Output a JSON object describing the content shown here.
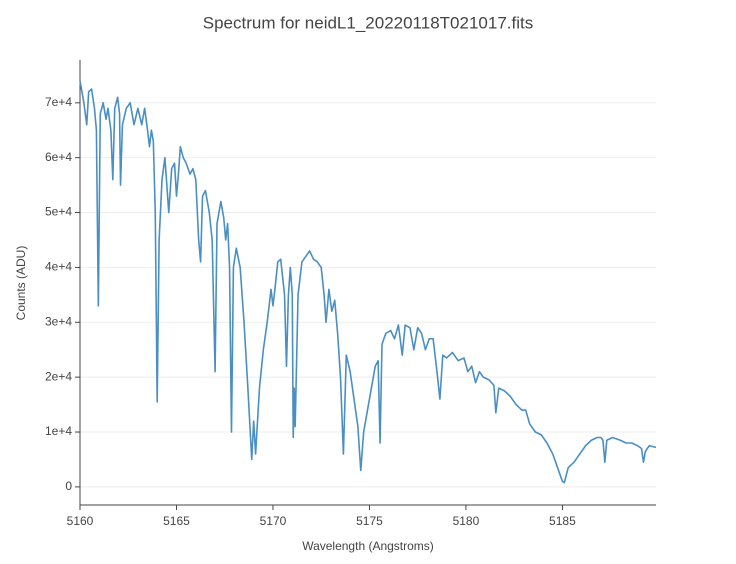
{
  "chart_data": {
    "type": "line",
    "title": "Spectrum for neidL1_20220118T021017.fits",
    "x_label": "Wavelength (Angstroms)",
    "y_label": "Counts (ADU)",
    "xlim": [
      5160,
      5189.85
    ],
    "ylim": [
      -3300,
      77800
    ],
    "xticks": [
      5160,
      5165,
      5170,
      5175,
      5180,
      5185
    ],
    "yticks": [
      0,
      {
        "value": 10000,
        "label": "1e+4"
      },
      {
        "value": 20000,
        "label": "2e+4"
      },
      {
        "value": 30000,
        "label": "3e+4"
      },
      {
        "value": 40000,
        "label": "4e+4"
      },
      {
        "value": 50000,
        "label": "5e+4"
      },
      {
        "value": 60000,
        "label": "6e+4"
      },
      {
        "value": 70000,
        "label": "7e+4"
      }
    ],
    "grid": true,
    "series": [
      {
        "name": "Counts (ADU)",
        "color": "#4a8fc4",
        "x": [
          5160.0,
          5160.1,
          5160.2,
          5160.35,
          5160.45,
          5160.6,
          5160.75,
          5160.85,
          5160.95,
          5161.05,
          5161.2,
          5161.35,
          5161.45,
          5161.6,
          5161.7,
          5161.8,
          5161.95,
          5162.05,
          5162.1,
          5162.2,
          5162.4,
          5162.6,
          5162.8,
          5163.0,
          5163.2,
          5163.35,
          5163.5,
          5163.6,
          5163.7,
          5163.8,
          5163.9,
          5164.0,
          5164.1,
          5164.25,
          5164.4,
          5164.5,
          5164.6,
          5164.75,
          5164.9,
          5165.0,
          5165.1,
          5165.2,
          5165.35,
          5165.5,
          5165.7,
          5165.85,
          5166.0,
          5166.15,
          5166.25,
          5166.35,
          5166.5,
          5166.7,
          5166.85,
          5167.0,
          5167.1,
          5167.3,
          5167.45,
          5167.55,
          5167.65,
          5167.75,
          5167.85,
          5167.95,
          5168.1,
          5168.3,
          5168.5,
          5168.7,
          5168.9,
          5169.0,
          5169.1,
          5169.3,
          5169.5,
          5169.7,
          5169.9,
          5170.0,
          5170.1,
          5170.25,
          5170.4,
          5170.6,
          5170.7,
          5170.8,
          5170.9,
          5171.0,
          5171.05,
          5171.1,
          5171.15,
          5171.3,
          5171.5,
          5171.7,
          5171.9,
          5172.1,
          5172.3,
          5172.5,
          5172.65,
          5172.75,
          5172.9,
          5173.05,
          5173.2,
          5173.35,
          5173.5,
          5173.65,
          5173.8,
          5174.0,
          5174.2,
          5174.4,
          5174.55,
          5174.7,
          5174.9,
          5175.1,
          5175.3,
          5175.45,
          5175.55,
          5175.65,
          5175.85,
          5176.1,
          5176.3,
          5176.5,
          5176.7,
          5176.85,
          5177.1,
          5177.3,
          5177.5,
          5177.7,
          5177.9,
          5178.1,
          5178.3,
          5178.5,
          5178.65,
          5178.8,
          5179.0,
          5179.3,
          5179.6,
          5179.9,
          5180.1,
          5180.3,
          5180.5,
          5180.7,
          5180.9,
          5181.2,
          5181.45,
          5181.55,
          5181.7,
          5182.0,
          5182.3,
          5182.6,
          5182.9,
          5183.1,
          5183.3,
          5183.6,
          5183.9,
          5184.2,
          5184.5,
          5184.8,
          5185.0,
          5185.1,
          5185.3,
          5185.6,
          5185.9,
          5186.2,
          5186.5,
          5186.8,
          5187.0,
          5187.1,
          5187.2,
          5187.3,
          5187.6,
          5188.0,
          5188.3,
          5188.6,
          5188.9,
          5189.1,
          5189.2,
          5189.3,
          5189.5,
          5189.85
        ],
        "values": [
          74000,
          72000,
          70000,
          66000,
          72000,
          72500,
          69000,
          65000,
          33000,
          68000,
          70000,
          67000,
          69000,
          65000,
          56000,
          69000,
          71000,
          68000,
          55000,
          66000,
          69000,
          70000,
          66000,
          69000,
          66000,
          69000,
          65000,
          62000,
          65000,
          63000,
          50000,
          15500,
          45000,
          56000,
          60000,
          55000,
          50000,
          58000,
          59000,
          53000,
          57000,
          62000,
          60000,
          59000,
          57000,
          58000,
          56000,
          45000,
          41000,
          53000,
          54000,
          50000,
          45000,
          21000,
          48000,
          52000,
          49000,
          45000,
          48000,
          40000,
          10000,
          40000,
          43500,
          40000,
          30000,
          18000,
          5000,
          12000,
          6000,
          18000,
          25000,
          30000,
          36000,
          33000,
          36000,
          41000,
          41500,
          35000,
          22000,
          35000,
          40000,
          35000,
          9000,
          18000,
          11000,
          35000,
          41000,
          42000,
          43000,
          41500,
          41000,
          40000,
          35000,
          30000,
          36000,
          32000,
          34000,
          28000,
          20000,
          6000,
          24000,
          21000,
          16000,
          11000,
          3000,
          10000,
          14000,
          18000,
          22000,
          23000,
          8000,
          26000,
          28000,
          28500,
          27000,
          29500,
          24000,
          29500,
          29000,
          25000,
          29000,
          28000,
          25000,
          27000,
          27000,
          21000,
          16000,
          24000,
          23500,
          24500,
          23000,
          23500,
          21000,
          22000,
          19000,
          21000,
          20000,
          19500,
          18500,
          13500,
          18000,
          17500,
          16500,
          15000,
          14000,
          14000,
          11500,
          10000,
          9500,
          8000,
          6000,
          3000,
          1000,
          800,
          3500,
          4500,
          6000,
          7500,
          8500,
          9000,
          9000,
          8500,
          4500,
          8500,
          9000,
          8500,
          8000,
          8000,
          7500,
          7000,
          4500,
          6500,
          7500,
          7200
        ]
      }
    ]
  }
}
